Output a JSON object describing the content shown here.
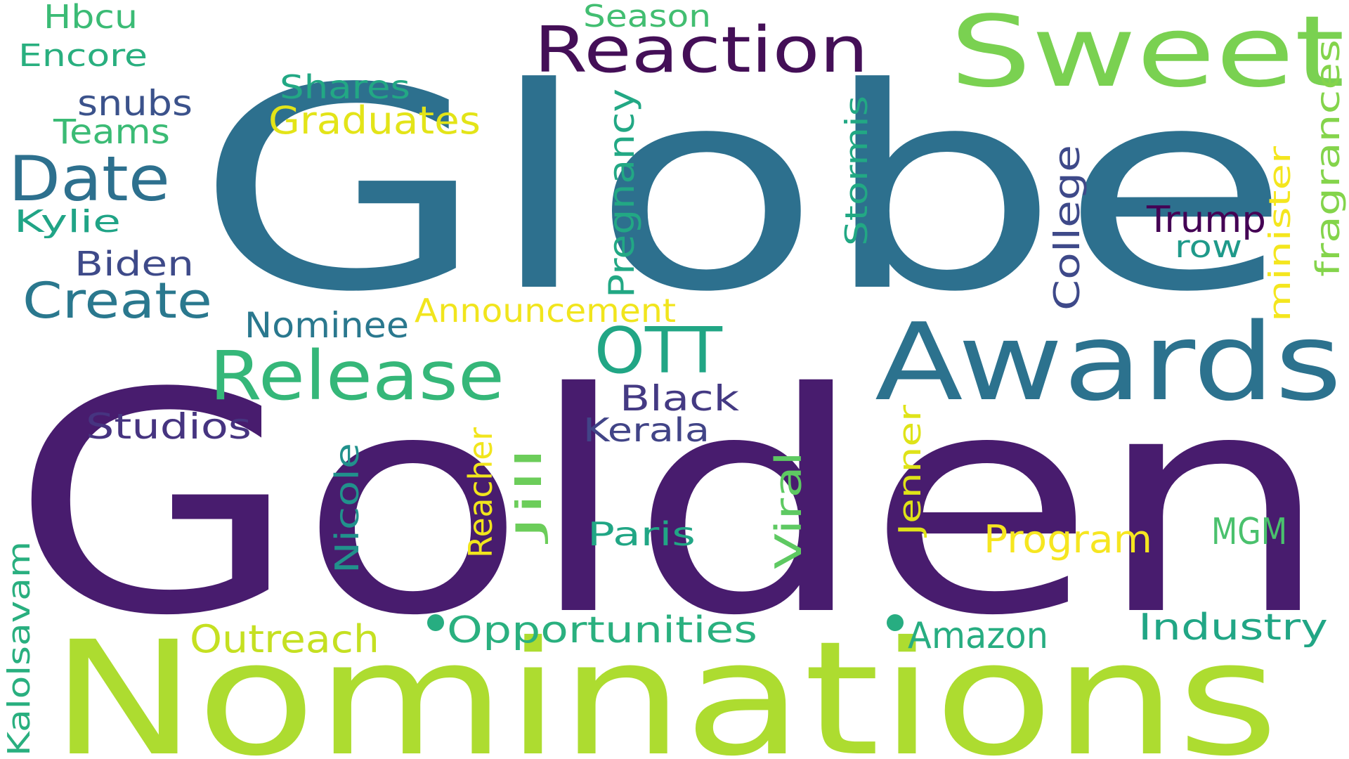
{
  "words": [
    {
      "text": "Golden",
      "color": "#481c6e"
    },
    {
      "text": "Globe",
      "color": "#2d708e"
    },
    {
      "text": "Nominations",
      "color": "#addc30"
    },
    {
      "text": "Awards",
      "color": "#2c728e"
    },
    {
      "text": "Sweet",
      "color": "#7ad151"
    },
    {
      "text": "Reaction",
      "color": "#440f57"
    },
    {
      "text": "Release",
      "color": "#35b779"
    },
    {
      "text": "Date",
      "color": "#2d708e"
    },
    {
      "text": "Create",
      "color": "#2a788e"
    },
    {
      "text": "OTT",
      "color": "#21a685"
    },
    {
      "text": "Graduates",
      "color": "#e3e418"
    },
    {
      "text": "Announcement",
      "color": "#f1e51d"
    },
    {
      "text": "Program",
      "color": "#f6e620"
    },
    {
      "text": "Opportunities",
      "color": "#2ab07f"
    },
    {
      "text": "Outreach",
      "color": "#c5e021"
    },
    {
      "text": "Industry",
      "color": "#21a685"
    },
    {
      "text": "Amazon",
      "color": "#27ad81"
    },
    {
      "text": "MGM",
      "color": "#4ac16d"
    },
    {
      "text": "Studios",
      "color": "#463480"
    },
    {
      "text": "Black",
      "color": "#443a83"
    },
    {
      "text": "Kerala",
      "color": "#414487"
    },
    {
      "text": "Nominee",
      "color": "#2a788e"
    },
    {
      "text": "Biden",
      "color": "#3e4a89"
    },
    {
      "text": "Trump",
      "color": "#440154"
    },
    {
      "text": "row",
      "color": "#1f9a8a"
    },
    {
      "text": "Paris",
      "color": "#21a685"
    },
    {
      "text": "Shares",
      "color": "#22a884"
    },
    {
      "text": "Teams",
      "color": "#3bbb75"
    },
    {
      "text": "snubs",
      "color": "#3b528b"
    },
    {
      "text": "Kylie",
      "color": "#20a486"
    },
    {
      "text": "Hbcu",
      "color": "#3bbb75"
    },
    {
      "text": "Encore",
      "color": "#29af7f"
    },
    {
      "text": "Season",
      "color": "#42be71"
    },
    {
      "text": "Pregnancy",
      "color": "#22a884"
    },
    {
      "text": "Stormis",
      "color": "#22a884"
    },
    {
      "text": "College",
      "color": "#3e4989"
    },
    {
      "text": "minister",
      "color": "#f4e61e"
    },
    {
      "text": "fragrances",
      "color": "#84d44b"
    },
    {
      "text": "Reacher",
      "color": "#f1e51d"
    },
    {
      "text": "Jill",
      "color": "#6ccd5a"
    },
    {
      "text": "Nicole",
      "color": "#21918c"
    },
    {
      "text": "Viral",
      "color": "#5ec962"
    },
    {
      "text": "Jenner",
      "color": "#dfe318"
    },
    {
      "text": "Kalolsavam",
      "color": "#29af7f"
    }
  ],
  "dots": [
    {
      "color": "#27ad81"
    },
    {
      "color": "#27ad81"
    }
  ]
}
